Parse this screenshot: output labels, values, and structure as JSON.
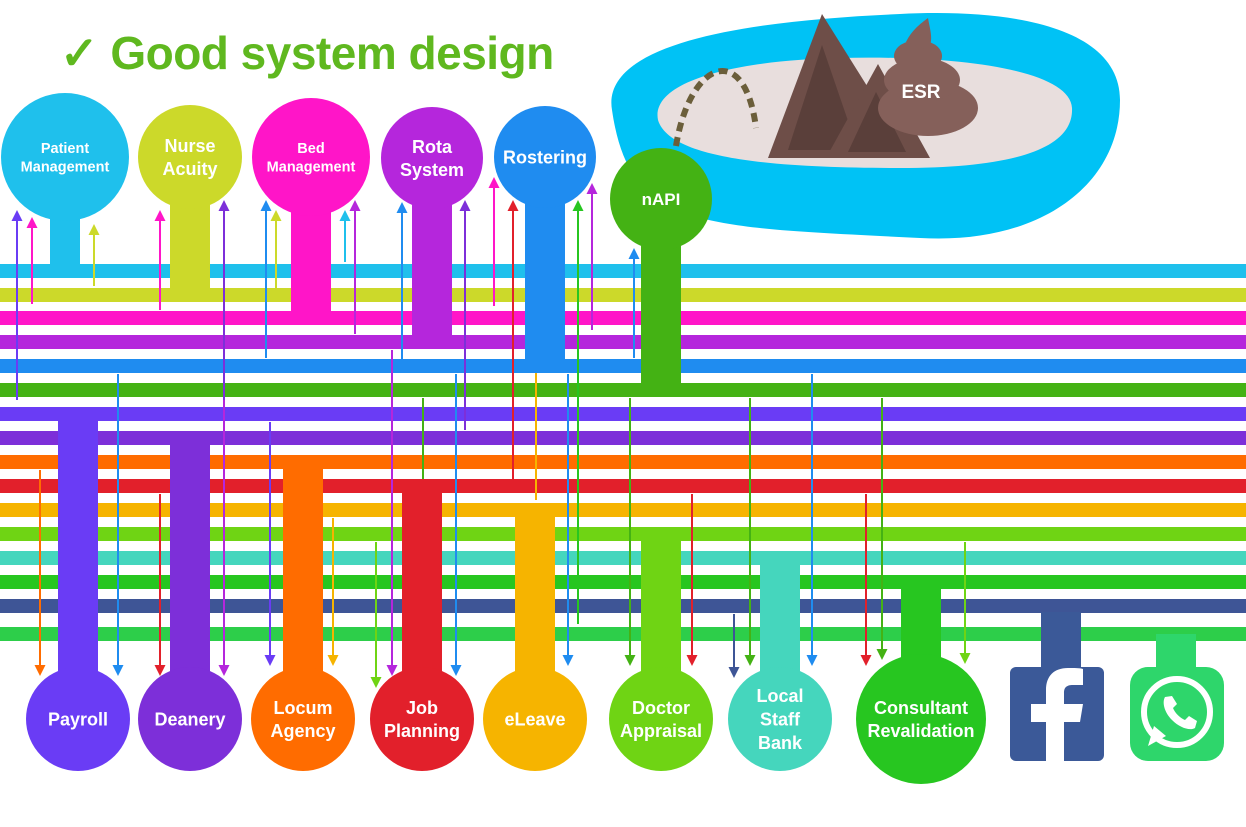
{
  "title": "✓ Good system design",
  "colors": {
    "title": "#5fb81f",
    "lake": "#00c2f5",
    "island": "#e8dedd",
    "mountain": "#6e4e48",
    "mountain_inner": "#5a3f3a",
    "poop": "#85605a",
    "pipe_dash": "#6b5e3a"
  },
  "buses": [
    {
      "color": "#1fc0ec"
    },
    {
      "color": "#ccd92a"
    },
    {
      "color": "#ff15c8"
    },
    {
      "color": "#b526dc"
    },
    {
      "color": "#1f8cf0"
    },
    {
      "color": "#44b214"
    },
    {
      "color": "#6a3cf5"
    },
    {
      "color": "#7d2fd9"
    },
    {
      "color": "#ff6c00"
    },
    {
      "color": "#e2202b"
    },
    {
      "color": "#f6b400"
    },
    {
      "color": "#6fd414"
    },
    {
      "color": "#45d6bd"
    },
    {
      "color": "#27c620"
    },
    {
      "color": "#3e5596"
    },
    {
      "color": "#2dce4a"
    }
  ],
  "top_systems": [
    {
      "label": [
        "Patient",
        "Management"
      ],
      "color": "#1fc0ec",
      "bus": 0
    },
    {
      "label": [
        "Nurse",
        "Acuity"
      ],
      "color": "#ccd92a",
      "bus": 1
    },
    {
      "label": [
        "Bed",
        "Management"
      ],
      "color": "#ff15c8",
      "bus": 2
    },
    {
      "label": [
        "Rota",
        "System"
      ],
      "color": "#b526dc",
      "bus": 3
    },
    {
      "label": [
        "Rostering"
      ],
      "color": "#1f8cf0",
      "bus": 4
    },
    {
      "label": [
        "nAPI"
      ],
      "color": "#44b214",
      "bus": 5
    }
  ],
  "bottom_systems": [
    {
      "label": [
        "Payroll"
      ],
      "color": "#6a3cf5",
      "bus": 6
    },
    {
      "label": [
        "Deanery"
      ],
      "color": "#7d2fd9",
      "bus": 7
    },
    {
      "label": [
        "Locum",
        "Agency"
      ],
      "color": "#ff6c00",
      "bus": 8
    },
    {
      "label": [
        "Job",
        "Planning"
      ],
      "color": "#e2202b",
      "bus": 9
    },
    {
      "label": [
        "eLeave"
      ],
      "color": "#f6b400",
      "bus": 10
    },
    {
      "label": [
        "Doctor",
        "Appraisal"
      ],
      "color": "#6fd414",
      "bus": 11
    },
    {
      "label": [
        "Local",
        "Staff",
        "Bank"
      ],
      "color": "#45d6bd",
      "bus": 12
    },
    {
      "label": [
        "Consultant",
        "Revalidation"
      ],
      "color": "#27c620",
      "bus": 13
    }
  ],
  "social_apps": [
    {
      "icon": "facebook-icon",
      "color": "#3b5998",
      "bus": 14
    },
    {
      "icon": "whatsapp-icon",
      "color": "#2ed66b",
      "bus": 15
    }
  ],
  "esr": {
    "label": "ESR"
  }
}
